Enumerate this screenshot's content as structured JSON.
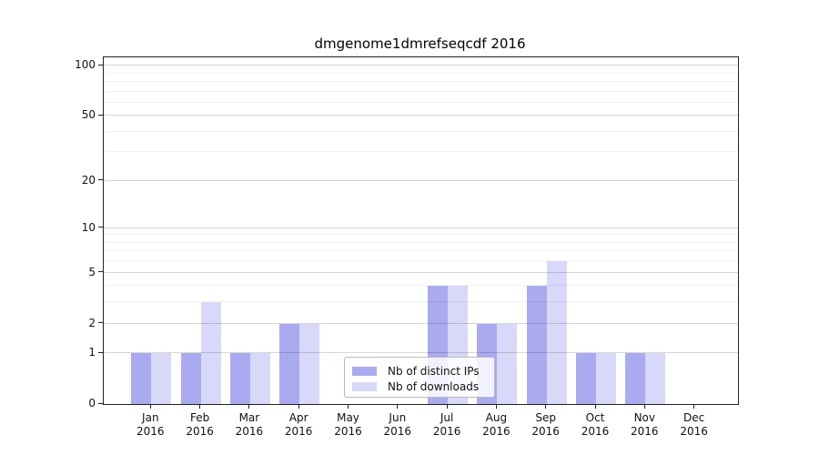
{
  "title": "dmgenome1dmrefseqcdf 2016",
  "chart_data": {
    "type": "bar",
    "categories": [
      "Jan",
      "Feb",
      "Mar",
      "Apr",
      "May",
      "Jun",
      "Jul",
      "Aug",
      "Sep",
      "Oct",
      "Nov",
      "Dec"
    ],
    "x_tick_year": "2016",
    "series": [
      {
        "name": "Nb of distinct IPs",
        "color": "#aaaaf0",
        "values": [
          1,
          1,
          1,
          2,
          0,
          0,
          4,
          2,
          4,
          1,
          1,
          0
        ]
      },
      {
        "name": "Nb of downloads",
        "color": "#d8d8f8",
        "values": [
          1,
          3,
          1,
          2,
          0,
          0,
          4,
          2,
          6,
          1,
          1,
          0
        ]
      }
    ],
    "title": "dmgenome1dmrefseqcdf 2016",
    "xlabel": "",
    "ylabel": "",
    "yscale": "log1p",
    "ylim": [
      0,
      112
    ],
    "yticks_major": [
      0,
      1,
      2,
      5,
      10,
      20,
      50,
      100
    ],
    "yticks_minor": [
      3,
      4,
      6,
      7,
      8,
      9,
      30,
      40,
      60,
      70,
      80,
      90
    ],
    "grid": true,
    "legend_position": "bottom-center"
  },
  "legend": {
    "entries": [
      {
        "label": "Nb of distinct IPs",
        "color": "#aaaaf0"
      },
      {
        "label": "Nb of downloads",
        "color": "#d8d8f8"
      }
    ]
  }
}
